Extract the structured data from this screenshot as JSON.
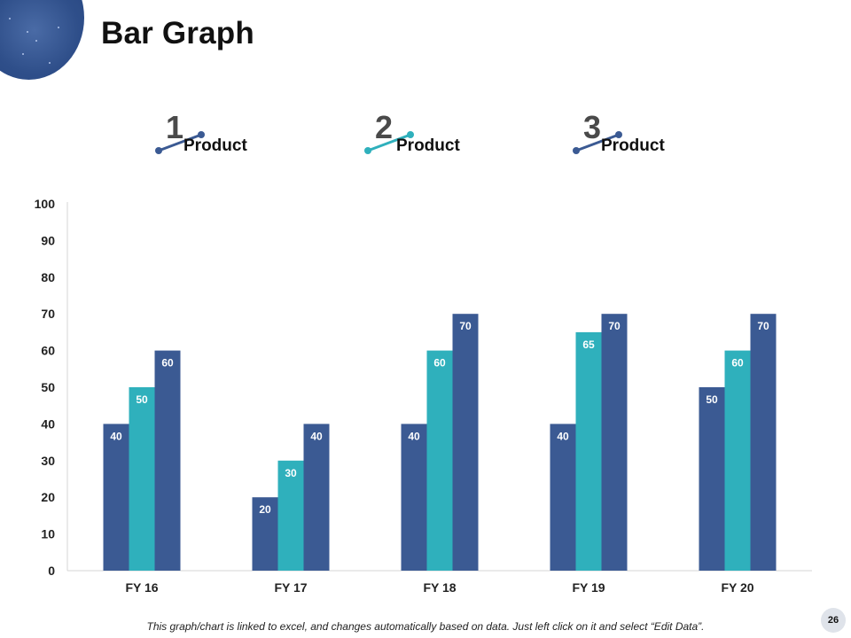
{
  "page": {
    "title": "Bar Graph",
    "page_number": "26"
  },
  "legend": [
    {
      "number": "1",
      "label": "Product",
      "color": "#3b5a93"
    },
    {
      "number": "2",
      "label": "Product",
      "color": "#2fb0bc"
    },
    {
      "number": "3",
      "label": "Product",
      "color": "#3b5a93"
    }
  ],
  "footnote": "This graph/chart is linked to excel, and changes automatically based on data. Just left click on it and select “Edit Data”.",
  "chart_data": {
    "type": "bar",
    "title": "",
    "xlabel": "",
    "ylabel": "",
    "ylim": [
      0,
      100
    ],
    "yticks": [
      "0",
      "10",
      "20",
      "30",
      "40",
      "50",
      "60",
      "70",
      "80",
      "90",
      "100"
    ],
    "categories": [
      "FY 16",
      "FY 17",
      "FY 18",
      "FY 19",
      "FY 20"
    ],
    "series": [
      {
        "name": "Product 1",
        "color": "#3b5a93",
        "values": [
          40,
          20,
          40,
          40,
          50
        ]
      },
      {
        "name": "Product 2",
        "color": "#2fb0bc",
        "values": [
          50,
          30,
          60,
          65,
          60
        ]
      },
      {
        "name": "Product 3",
        "color": "#3b5a93",
        "values": [
          60,
          40,
          70,
          70,
          70
        ]
      }
    ]
  }
}
